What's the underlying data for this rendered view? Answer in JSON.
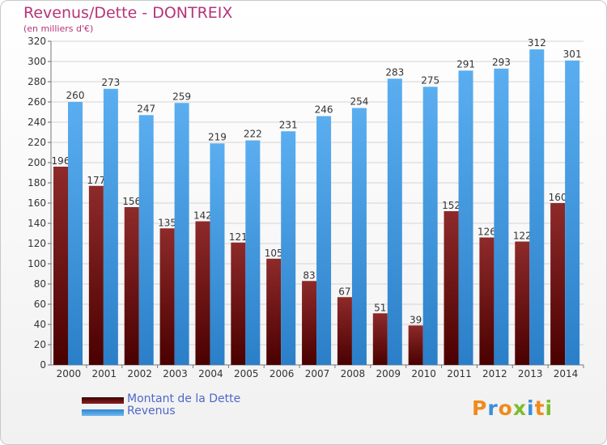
{
  "chart_data": {
    "type": "bar",
    "title": "Revenus/Dette - DONTREIX",
    "subtitle": "(en milliers d'€)",
    "categories": [
      "2000",
      "2001",
      "2002",
      "2003",
      "2004",
      "2005",
      "2006",
      "2007",
      "2008",
      "2009",
      "2010",
      "2011",
      "2012",
      "2013",
      "2014"
    ],
    "series": [
      {
        "name": "Montant de la Dette",
        "color": "#7a1c1c",
        "values": [
          196,
          177,
          156,
          135,
          142,
          121,
          105,
          83,
          67,
          51,
          39,
          152,
          126,
          122,
          160
        ]
      },
      {
        "name": "Revenus",
        "color": "#4f9fe0",
        "values": [
          260,
          273,
          247,
          259,
          219,
          222,
          231,
          246,
          254,
          283,
          275,
          291,
          293,
          312,
          301
        ]
      }
    ],
    "ylim": [
      0,
      320
    ],
    "yticks": [
      "0",
      "20",
      "40",
      "60",
      "80",
      "100",
      "120",
      "140",
      "160",
      "180",
      "200",
      "220",
      "240",
      "260",
      "280",
      "300",
      "320"
    ],
    "grid": true,
    "legend_position": "bottom-left"
  },
  "logo": {
    "letters": [
      "P",
      "r",
      "o",
      "x",
      "i",
      "t",
      "i"
    ],
    "colors": [
      "#f08a1c",
      "#3a8fd8",
      "#f08a1c",
      "#7cbd2a",
      "#3a8fd8",
      "#f08a1c",
      "#7cbd2a"
    ]
  }
}
